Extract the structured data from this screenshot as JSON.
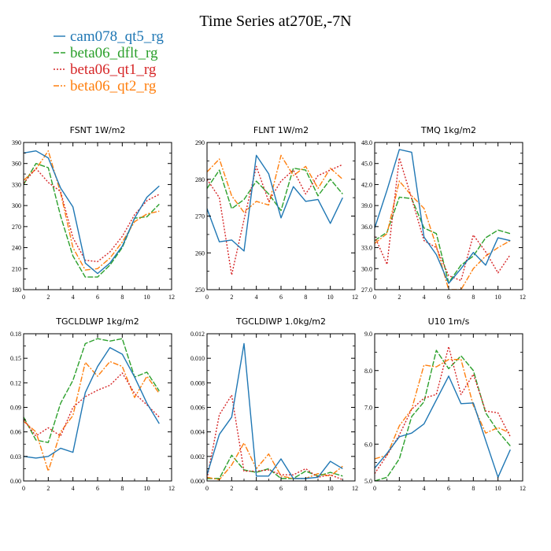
{
  "figure": {
    "title": "Time Series at270E,-7N"
  },
  "legend": [
    {
      "name": "cam078_qt5_rg",
      "color": "#1f77b4",
      "dash": "solid"
    },
    {
      "name": "beta06_dflt_rg",
      "color": "#2ca02c",
      "dash": "longdash"
    },
    {
      "name": "beta06_qt1_rg",
      "color": "#d62728",
      "dash": "dot"
    },
    {
      "name": "beta06_qt2_rg",
      "color": "#ff7f0e",
      "dash": "dashdot"
    }
  ],
  "chart_data": [
    {
      "type": "line",
      "title": "FSNT   1W/m2",
      "xlim": [
        0,
        12
      ],
      "ylim": [
        180,
        390
      ],
      "xticks": [
        0,
        2,
        4,
        6,
        8,
        10,
        12
      ],
      "xtick_labels": [
        "0",
        "2",
        "4",
        "6",
        "8",
        "10",
        "12"
      ],
      "yticks": [
        180,
        210,
        240,
        270,
        300,
        330,
        360,
        390
      ],
      "ytick_labels": [
        "180",
        "210",
        "240",
        "270",
        "300",
        "330",
        "360",
        "390"
      ],
      "x": [
        0,
        1,
        2,
        3,
        4,
        5,
        6,
        7,
        8,
        9,
        10,
        11
      ],
      "series": [
        {
          "name": "cam078_qt5_rg",
          "values": [
            375,
            378,
            368,
            325,
            298,
            218,
            203,
            218,
            242,
            282,
            312,
            328
          ]
        },
        {
          "name": "beta06_dflt_rg",
          "values": [
            330,
            360,
            354,
            285,
            228,
            198,
            198,
            215,
            240,
            282,
            284,
            302
          ]
        },
        {
          "name": "beta06_qt1_rg",
          "values": [
            332,
            353,
            333,
            320,
            254,
            222,
            220,
            234,
            256,
            287,
            307,
            316
          ]
        },
        {
          "name": "beta06_qt2_rg",
          "values": [
            336,
            352,
            378,
            318,
            240,
            208,
            210,
            225,
            248,
            277,
            288,
            292
          ]
        }
      ]
    },
    {
      "type": "line",
      "title": "FLNT   1W/m2",
      "xlim": [
        0,
        12
      ],
      "ylim": [
        250,
        290
      ],
      "xticks": [
        0,
        2,
        4,
        6,
        8,
        10,
        12
      ],
      "xtick_labels": [
        "0",
        "2",
        "4",
        "6",
        "8",
        "10",
        "12"
      ],
      "yticks": [
        250,
        260,
        270,
        280,
        290
      ],
      "ytick_labels": [
        "250",
        "260",
        "270",
        "280",
        "290"
      ],
      "x": [
        0,
        1,
        2,
        3,
        4,
        5,
        6,
        7,
        8,
        9,
        10,
        11
      ],
      "series": [
        {
          "name": "cam078_qt5_rg",
          "values": [
            272,
            263,
            263.5,
            260.5,
            286.5,
            281.5,
            269.5,
            278,
            274,
            274.5,
            268,
            275
          ]
        },
        {
          "name": "beta06_dflt_rg",
          "values": [
            277.5,
            282.5,
            272,
            274.5,
            279.5,
            276,
            271.5,
            283,
            282.5,
            275.5,
            280,
            276
          ]
        },
        {
          "name": "beta06_qt1_rg",
          "values": [
            280,
            275,
            254,
            269,
            283.5,
            274,
            279.5,
            282.5,
            276,
            281,
            282.5,
            284
          ]
        },
        {
          "name": "beta06_qt2_rg",
          "values": [
            282,
            285.5,
            275.5,
            271,
            274,
            273,
            286.5,
            281,
            283.5,
            277.5,
            283,
            280
          ]
        }
      ]
    },
    {
      "type": "line",
      "title": "TMQ   1kg/m2",
      "xlim": [
        0,
        12
      ],
      "ylim": [
        27,
        48
      ],
      "xticks": [
        0,
        2,
        4,
        6,
        8,
        10,
        12
      ],
      "xtick_labels": [
        "0",
        "2",
        "4",
        "6",
        "8",
        "10",
        "12"
      ],
      "yticks": [
        27,
        30,
        33,
        36,
        39,
        42,
        45,
        48
      ],
      "ytick_labels": [
        "27.0",
        "30.0",
        "33.0",
        "36.0",
        "39.0",
        "42.0",
        "45.0",
        "48.0"
      ],
      "x": [
        0,
        1,
        2,
        3,
        4,
        5,
        6,
        7,
        8,
        9,
        10,
        11
      ],
      "series": [
        {
          "name": "cam078_qt5_rg",
          "values": [
            35.8,
            41.2,
            47.0,
            46.6,
            34.5,
            32.0,
            27.9,
            30.0,
            32.3,
            30.5,
            34.4,
            34.0
          ]
        },
        {
          "name": "beta06_dflt_rg",
          "values": [
            34.0,
            35.2,
            40.2,
            40.0,
            35.8,
            35.0,
            28.0,
            30.5,
            31.8,
            34.4,
            35.5,
            35.0
          ]
        },
        {
          "name": "beta06_qt1_rg",
          "values": [
            34.6,
            30.6,
            45.8,
            40.0,
            34.0,
            33.0,
            29.0,
            28.3,
            34.8,
            32.4,
            29.4,
            32.0
          ]
        },
        {
          "name": "beta06_qt2_rg",
          "values": [
            33.6,
            35.0,
            42.5,
            40.4,
            38.6,
            33.2,
            27.0,
            27.0,
            30.0,
            31.8,
            33.0,
            34.0
          ]
        }
      ]
    },
    {
      "type": "line",
      "title": "TGCLDLWP   1kg/m2",
      "xlim": [
        0,
        12
      ],
      "ylim": [
        0,
        0.18
      ],
      "xticks": [
        0,
        2,
        4,
        6,
        8,
        10,
        12
      ],
      "xtick_labels": [
        "0",
        "2",
        "4",
        "6",
        "8",
        "10",
        "12"
      ],
      "yticks": [
        0,
        0.03,
        0.06,
        0.09,
        0.12,
        0.15,
        0.18
      ],
      "ytick_labels": [
        "0.00",
        "0.03",
        "0.06",
        "0.09",
        "0.12",
        "0.15",
        "0.18"
      ],
      "x": [
        0,
        1,
        2,
        3,
        4,
        5,
        6,
        7,
        8,
        9,
        10,
        11
      ],
      "series": [
        {
          "name": "cam078_qt5_rg",
          "values": [
            0.03,
            0.028,
            0.03,
            0.04,
            0.035,
            0.108,
            0.14,
            0.163,
            0.155,
            0.127,
            0.095,
            0.07
          ]
        },
        {
          "name": "beta06_dflt_rg",
          "values": [
            0.078,
            0.05,
            0.047,
            0.095,
            0.123,
            0.168,
            0.174,
            0.171,
            0.174,
            0.127,
            0.133,
            0.11
          ]
        },
        {
          "name": "beta06_qt1_rg",
          "values": [
            0.075,
            0.055,
            0.065,
            0.055,
            0.09,
            0.103,
            0.111,
            0.117,
            0.132,
            0.107,
            0.093,
            0.078
          ]
        },
        {
          "name": "beta06_qt2_rg",
          "values": [
            0.073,
            0.06,
            0.012,
            0.06,
            0.08,
            0.145,
            0.128,
            0.146,
            0.14,
            0.102,
            0.128,
            0.107
          ]
        }
      ]
    },
    {
      "type": "line",
      "title": "TGCLDIWP   1.0kg/m2",
      "xlim": [
        0,
        12
      ],
      "ylim": [
        0,
        0.012
      ],
      "xticks": [
        0,
        2,
        4,
        6,
        8,
        10,
        12
      ],
      "xtick_labels": [
        "0",
        "2",
        "4",
        "6",
        "8",
        "10",
        "12"
      ],
      "yticks": [
        0,
        0.002,
        0.004,
        0.006,
        0.008,
        0.01,
        0.012
      ],
      "ytick_labels": [
        "0.000",
        "0.002",
        "0.004",
        "0.006",
        "0.008",
        "0.010",
        "0.012"
      ],
      "x": [
        0,
        1,
        2,
        3,
        4,
        5,
        6,
        7,
        8,
        9,
        10,
        11
      ],
      "series": [
        {
          "name": "cam078_qt5_rg",
          "values": [
            0.0005,
            0.0038,
            0.0052,
            0.0112,
            0.0004,
            0.0004,
            0.0018,
            0.0002,
            0.0002,
            0.0003,
            0.0016,
            0.001
          ]
        },
        {
          "name": "beta06_dflt_rg",
          "values": [
            0.0002,
            0.0002,
            0.0021,
            0.0009,
            0.0007,
            0.001,
            0.0002,
            0.0002,
            0.0008,
            0.0004,
            0.0007,
            0.0004
          ]
        },
        {
          "name": "beta06_qt1_rg",
          "values": [
            0.0002,
            0.0054,
            0.007,
            0.0008,
            0.0008,
            0.0009,
            0.0005,
            0.0005,
            0.001,
            0.0003,
            0.0005,
            0.0001
          ]
        },
        {
          "name": "beta06_qt2_rg",
          "values": [
            0.0003,
            0.0001,
            0.0013,
            0.0031,
            0.001,
            0.0022,
            0.0004,
            0.0002,
            0.0002,
            0.0006,
            0.0004,
            0.0012
          ]
        }
      ]
    },
    {
      "type": "line",
      "title": "U10   1m/s",
      "xlim": [
        0,
        12
      ],
      "ylim": [
        5,
        9
      ],
      "xticks": [
        0,
        2,
        4,
        6,
        8,
        10,
        12
      ],
      "xtick_labels": [
        "0",
        "2",
        "4",
        "6",
        "8",
        "10",
        "12"
      ],
      "yticks": [
        5,
        6,
        7,
        8,
        9
      ],
      "ytick_labels": [
        "5.0",
        "6.0",
        "7.0",
        "8.0",
        "9.0"
      ],
      "x": [
        0,
        1,
        2,
        3,
        4,
        5,
        6,
        7,
        8,
        9,
        10,
        11
      ],
      "series": [
        {
          "name": "cam078_qt5_rg",
          "values": [
            5.35,
            5.75,
            6.2,
            6.3,
            6.55,
            7.2,
            7.85,
            7.1,
            7.12,
            6.1,
            5.1,
            5.85
          ]
        },
        {
          "name": "beta06_dflt_rg",
          "values": [
            5.0,
            5.1,
            5.6,
            6.75,
            7.15,
            8.55,
            8.05,
            8.4,
            8.0,
            6.85,
            6.35,
            5.95
          ]
        },
        {
          "name": "beta06_qt1_rg",
          "values": [
            5.2,
            5.7,
            6.25,
            6.95,
            7.25,
            7.35,
            8.65,
            7.35,
            7.9,
            6.9,
            6.85,
            6.2
          ]
        },
        {
          "name": "beta06_qt2_rg",
          "values": [
            5.6,
            5.7,
            6.5,
            6.95,
            8.15,
            8.1,
            8.3,
            8.3,
            7.05,
            6.3,
            6.45,
            6.3
          ]
        }
      ]
    }
  ]
}
